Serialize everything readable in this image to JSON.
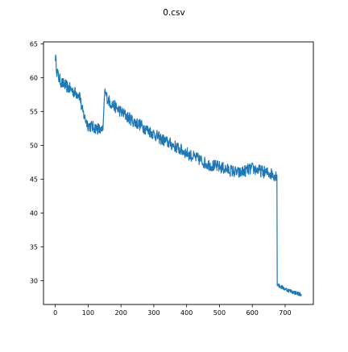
{
  "chart_data": {
    "type": "line",
    "title": "0.csv",
    "xlabel": "",
    "ylabel": "",
    "xlim": [
      -36,
      786
    ],
    "ylim": [
      26.5,
      65.3
    ],
    "grid": false,
    "x_ticks": [
      0,
      100,
      200,
      300,
      400,
      500,
      600,
      700
    ],
    "y_ticks": [
      30,
      35,
      40,
      45,
      50,
      55,
      60,
      65
    ],
    "series": [
      {
        "color": "#1f77b4",
        "x": [
          0,
          5,
          10,
          15,
          20,
          30,
          40,
          50,
          60,
          70,
          75,
          80,
          85,
          90,
          100,
          110,
          120,
          130,
          135,
          140,
          145,
          150,
          160,
          170,
          180,
          200,
          220,
          240,
          260,
          280,
          300,
          320,
          340,
          360,
          380,
          400,
          420,
          440,
          460,
          480,
          500,
          520,
          540,
          560,
          580,
          600,
          620,
          640,
          660,
          670,
          675,
          676,
          680,
          700,
          720,
          740,
          750
        ],
        "y": [
          63.2,
          61.0,
          60.0,
          59.6,
          59.2,
          58.9,
          58.5,
          58.2,
          57.8,
          57.6,
          57.4,
          55.5,
          54.8,
          54.0,
          53.0,
          52.8,
          52.6,
          52.5,
          52.3,
          52.0,
          52.2,
          58.0,
          56.8,
          56.2,
          55.8,
          55.0,
          54.2,
          53.5,
          53.0,
          52.3,
          51.7,
          51.0,
          50.5,
          50.0,
          49.4,
          48.9,
          48.3,
          47.9,
          47.3,
          47.0,
          46.8,
          46.5,
          46.2,
          45.9,
          46.3,
          46.6,
          46.3,
          46.0,
          45.8,
          45.6,
          45.6,
          29.8,
          29.3,
          28.8,
          28.4,
          28.1,
          28.0
        ]
      }
    ]
  }
}
